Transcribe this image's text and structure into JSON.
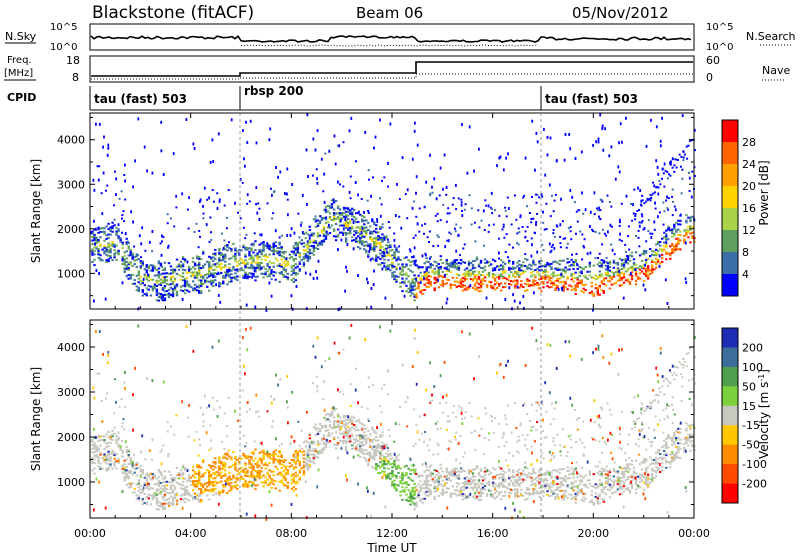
{
  "header": {
    "station": "Blackstone (fitACF)",
    "beam": "Beam 06",
    "date": "05/Nov/2012"
  },
  "panels": {
    "nsky_label": "N.Sky",
    "nsearch_label": "N.Search",
    "sky_ticks": [
      "10^5",
      "10^0"
    ],
    "search_ticks": [
      "10^5",
      "10^0"
    ],
    "freq_label": "Freq.",
    "freq_unit": "[MHz]",
    "freq_ticks": [
      "18",
      "8"
    ],
    "nave_label": "Nave",
    "nave_ticks": [
      "60",
      "0"
    ],
    "cpid_label": "CPID",
    "cpid_modes": [
      "tau (fast) 503",
      "rbsp 200",
      "tau (fast) 503"
    ]
  },
  "colorbars": {
    "power": {
      "label": "Power [dB]",
      "ticks": [
        "28",
        "24",
        "20",
        "16",
        "12",
        "8",
        "4"
      ],
      "colors": [
        "#ff0000",
        "#ff6400",
        "#ffa000",
        "#ffd200",
        "#aad24a",
        "#5fa05f",
        "#3c6eaa",
        "#0000ff"
      ]
    },
    "velocity": {
      "label": "Velocity [m s",
      "label_sup": "-1",
      "label_close": "]",
      "ticks": [
        "200",
        "100",
        "50",
        "15",
        "-15",
        "-50",
        "-100",
        "-200"
      ],
      "colors": [
        "#1e2db4",
        "#3c6e9b",
        "#4ea04e",
        "#7cd23c",
        "#c8c8c0",
        "#ffc800",
        "#ff8c00",
        "#ff4b00",
        "#ff0000"
      ]
    }
  },
  "axes": {
    "ylabel": "Slant Range [km]",
    "yticks": [
      "4000",
      "3000",
      "2000",
      "1000"
    ],
    "xticks": [
      "00:00",
      "04:00",
      "08:00",
      "12:00",
      "16:00",
      "20:00",
      "00:00"
    ],
    "xlabel": "Time UT"
  },
  "chart_data": [
    {
      "type": "heatmap",
      "title": "Power [dB]",
      "xlabel": "",
      "ylabel": "Slant Range [km]",
      "x_range_hours": [
        0,
        24
      ],
      "ylim": [
        200,
        4600
      ],
      "band_points": [
        [
          0.1,
          1650
        ],
        [
          0.5,
          1700
        ],
        [
          1.0,
          1750
        ],
        [
          1.5,
          1300
        ],
        [
          2.0,
          900
        ],
        [
          3.0,
          850
        ],
        [
          4.0,
          1000
        ],
        [
          5.0,
          1150
        ],
        [
          6.0,
          1300
        ],
        [
          7.0,
          1350
        ],
        [
          8.0,
          1200
        ],
        [
          8.8,
          1800
        ],
        [
          9.6,
          2250
        ],
        [
          10.5,
          2100
        ],
        [
          11.5,
          1650
        ],
        [
          12.3,
          1100
        ],
        [
          12.9,
          850
        ],
        [
          13.5,
          1050
        ],
        [
          15.0,
          1000
        ],
        [
          17.0,
          1000
        ],
        [
          18.5,
          1000
        ],
        [
          20.0,
          900
        ],
        [
          22.0,
          1200
        ],
        [
          23.5,
          2000
        ]
      ]
    },
    {
      "type": "heatmap",
      "title": "Velocity [m s-1]",
      "xlabel": "Time UT",
      "ylabel": "Slant Range [km]",
      "x_range_hours": [
        0,
        24
      ],
      "ylim": [
        200,
        4600
      ],
      "dominant_clusters": [
        {
          "hours": [
            4.0,
            8.5
          ],
          "range_km": [
            800,
            1700
          ],
          "velocity_class": "-50"
        },
        {
          "hours": [
            13.0,
            24.0
          ],
          "range_km": [
            800,
            1600
          ],
          "velocity_class": "-15"
        },
        {
          "hours": [
            11.5,
            12.9
          ],
          "range_km": [
            600,
            1400
          ],
          "velocity_class": "50"
        }
      ]
    }
  ]
}
